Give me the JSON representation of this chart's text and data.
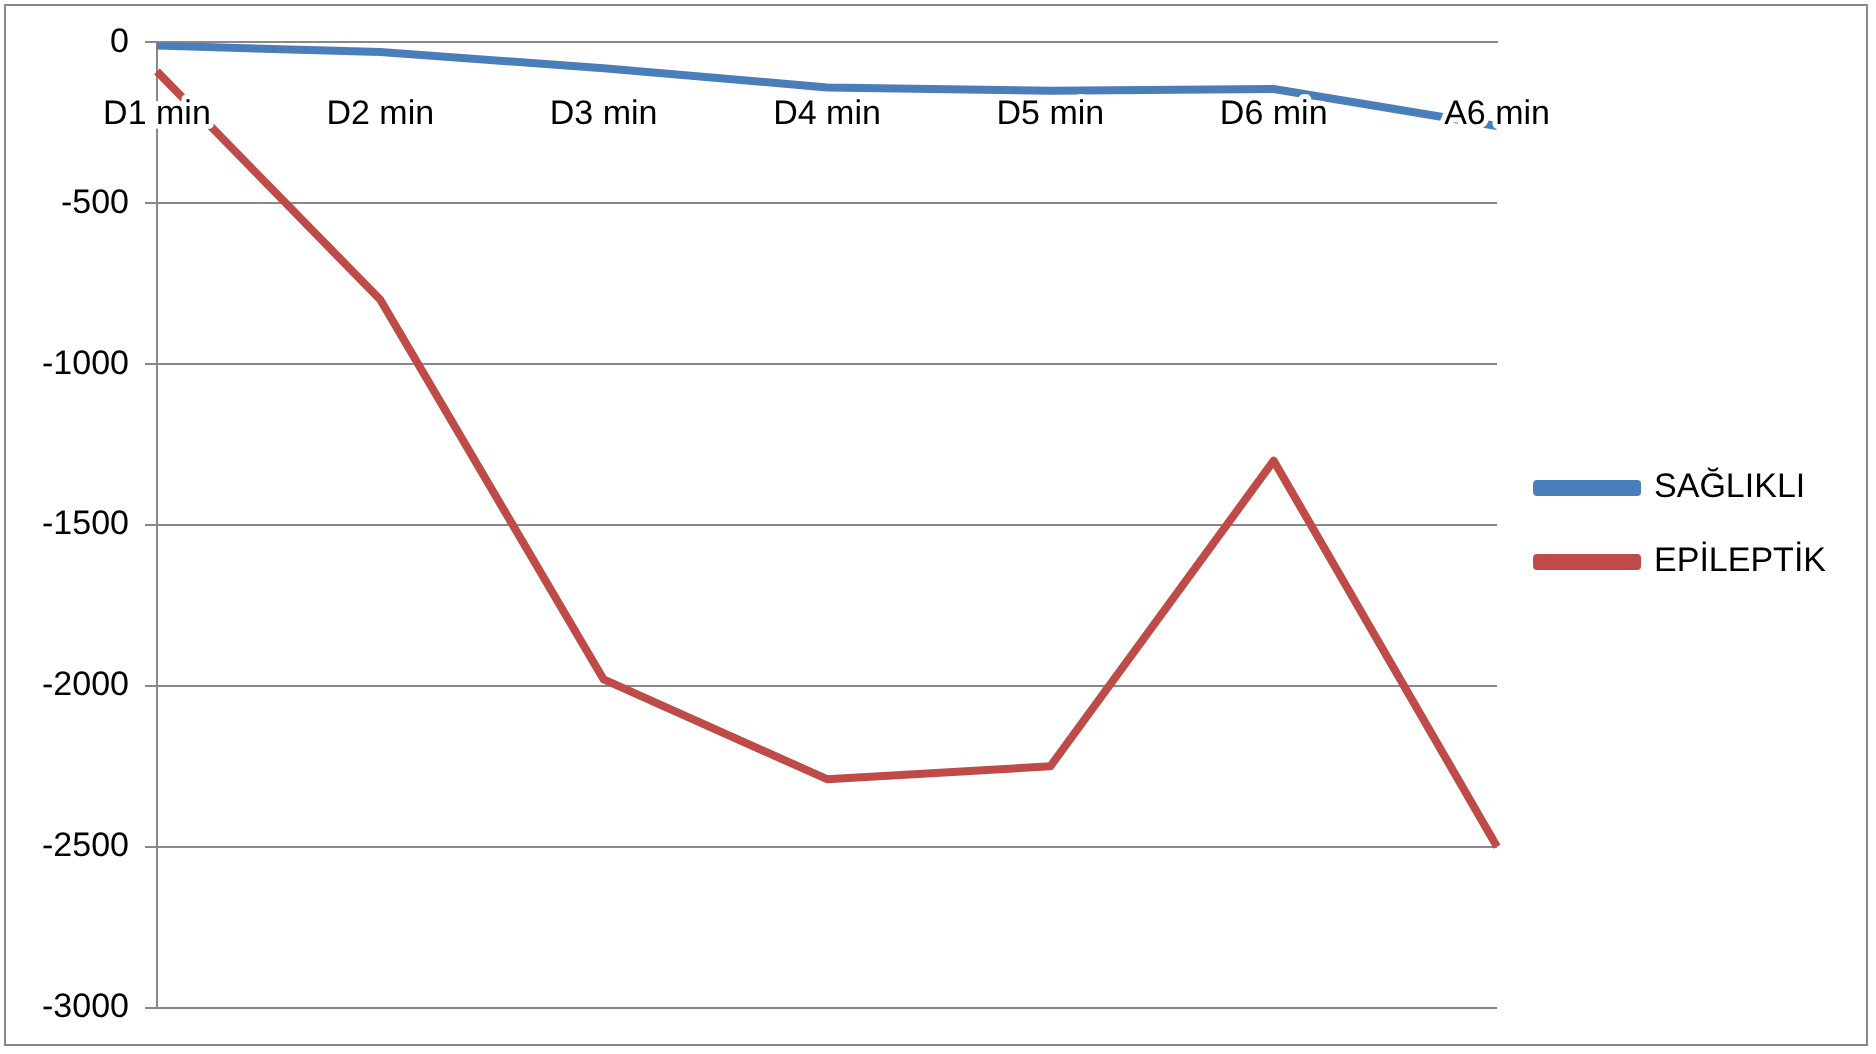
{
  "chart_data": {
    "type": "line",
    "categories": [
      "D1 min",
      "D2 min",
      "D3 min",
      "D4 min",
      "D5 min",
      "D6 min",
      "A6 min"
    ],
    "series": [
      {
        "name": "SAĞLIKLI",
        "color": "#4a7ebb",
        "values": [
          -10,
          -30,
          -80,
          -140,
          -150,
          -145,
          -260
        ]
      },
      {
        "name": "EPİLEPTİK",
        "color": "#be4b48",
        "values": [
          -90,
          -800,
          -1980,
          -2290,
          -2250,
          -1300,
          -2500
        ]
      }
    ],
    "ylim": [
      -3000,
      0
    ],
    "yticks": [
      -3000,
      -2500,
      -2000,
      -1500,
      -1000,
      -500,
      0
    ],
    "grid": "y",
    "legend": "right",
    "marker": "none",
    "line_style": "solid"
  }
}
